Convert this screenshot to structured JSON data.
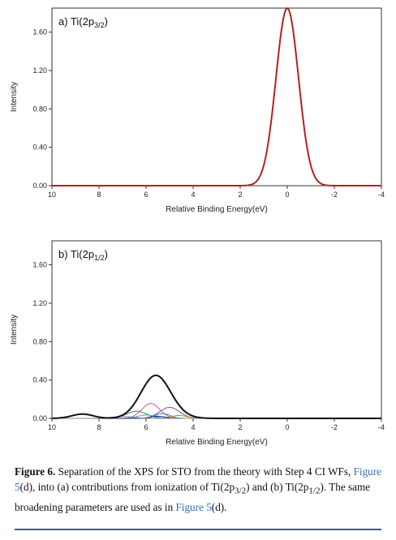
{
  "chart_data": [
    {
      "type": "line",
      "panel_label": "a) Ti(2p3/2)",
      "panel_main": "a) Ti(2p",
      "panel_sub": "3/2",
      "panel_close": ")",
      "xlabel": "Relative Binding Energy(eV)",
      "ylabel": "Intensity",
      "xlim": [
        10,
        -4
      ],
      "ylim": [
        0,
        1.85
      ],
      "xticks": [
        "10",
        "8",
        "6",
        "4",
        "2",
        "0",
        "-2",
        "-4"
      ],
      "yticks": [
        "0.00",
        "0.40",
        "0.80",
        "1.20",
        "1.60"
      ],
      "series": [
        {
          "role": "total",
          "color": "#b22222",
          "peaks": [
            {
              "center": 0.0,
              "height": 1.85,
              "width": 0.48
            }
          ]
        }
      ]
    },
    {
      "type": "line",
      "panel_label": "b) Ti(2p1/2)",
      "panel_main": "b) Ti(2p",
      "panel_sub": "1/2",
      "panel_close": ")",
      "xlabel": "Relative Binding Energy(eV)",
      "ylabel": "Intensity",
      "xlim": [
        10,
        -4
      ],
      "ylim": [
        0,
        1.85
      ],
      "xticks": [
        "10",
        "8",
        "6",
        "4",
        "2",
        "0",
        "-2",
        "-4"
      ],
      "yticks": [
        "0.00",
        "0.40",
        "0.80",
        "1.20",
        "1.60"
      ],
      "series": [
        {
          "role": "total",
          "color": "#111111",
          "peaks": [
            {
              "center": 5.6,
              "height": 0.44,
              "width": 0.62
            },
            {
              "center": 8.7,
              "height": 0.045,
              "width": 0.45
            },
            {
              "center": 4.8,
              "height": 0.02,
              "width": 0.6
            }
          ]
        },
        {
          "role": "component",
          "color": "#d45a8a",
          "peaks": [
            {
              "center": 5.8,
              "height": 0.155,
              "width": 0.38
            }
          ]
        },
        {
          "role": "component",
          "color": "#7a4fb0",
          "peaks": [
            {
              "center": 5.0,
              "height": 0.115,
              "width": 0.42
            }
          ]
        },
        {
          "role": "component",
          "color": "#2e8b3a",
          "peaks": [
            {
              "center": 6.4,
              "height": 0.075,
              "width": 0.42
            }
          ]
        },
        {
          "role": "component",
          "color": "#2a8aa0",
          "peaks": [
            {
              "center": 5.3,
              "height": 0.05,
              "width": 0.32
            }
          ]
        },
        {
          "role": "component",
          "color": "#4aa0d8",
          "peaks": [
            {
              "center": 6.0,
              "height": 0.035,
              "width": 0.35
            }
          ]
        },
        {
          "role": "component",
          "color": "#c48a2a",
          "peaks": [
            {
              "center": 4.6,
              "height": 0.03,
              "width": 0.35
            }
          ]
        },
        {
          "role": "component",
          "color": "#1a2a8a",
          "peaks": [
            {
              "center": 5.5,
              "height": 0.022,
              "width": 0.3
            }
          ]
        },
        {
          "role": "component",
          "color": "#8a8a8a",
          "peaks": [
            {
              "center": 7.0,
              "height": 0.02,
              "width": 0.45
            }
          ]
        }
      ]
    }
  ],
  "caption": {
    "lead": "Figure 6.",
    "p1": " Separation of the XPS for STO from the theory with Step 4 CI WFs, ",
    "link1": "Figure 5",
    "p2": "(d), into (a) contributions from ionization of Ti(2p",
    "sub1": "3/2",
    "p3": ") and (b) Ti(2p",
    "sub2": "1/2",
    "p4": "). The same broadening parameters are used as in ",
    "link2": "Figure 5",
    "p5": "(d)."
  }
}
